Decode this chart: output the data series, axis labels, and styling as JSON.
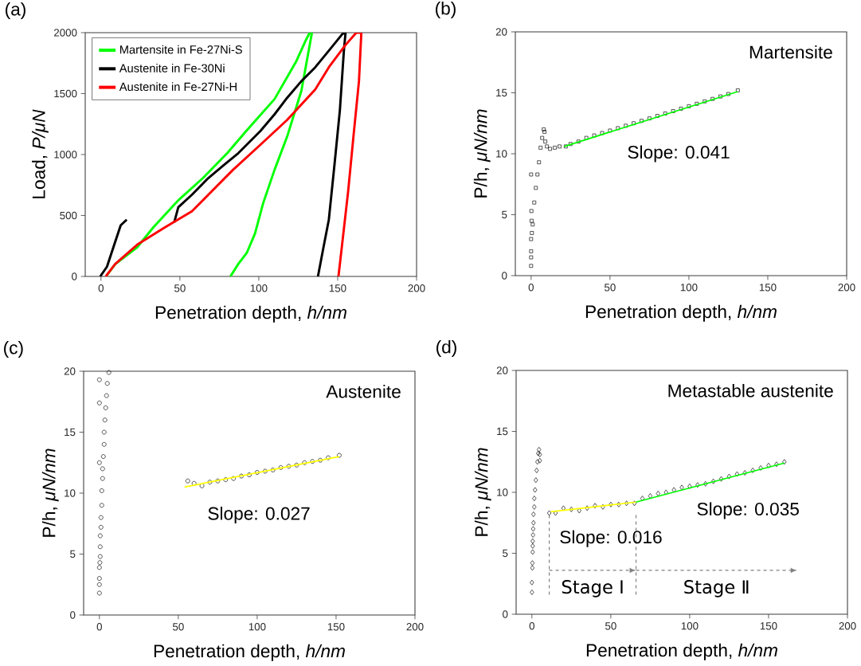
{
  "chart_data": [
    {
      "type": "line",
      "title": "(a)",
      "xlabel": "Penetration depth, *h/nm*",
      "ylabel": "Load, *P/μN*",
      "xlim": [
        -10,
        200
      ],
      "ylim": [
        0,
        2000
      ],
      "xticks": [
        0,
        50,
        100,
        150,
        200
      ],
      "yticks": [
        0,
        500,
        1000,
        1500,
        2000
      ],
      "legend": "top left",
      "series": [
        {
          "name": "Martensite in Fe-27Ni-S",
          "color": "#00ff00",
          "x": [
            3.8,
            9,
            23,
            33,
            49,
            64.6,
            80,
            92,
            110,
            123.6,
            130,
            132.3,
            133.7,
            127,
            118,
            110,
            102.8,
            97.6,
            92.4,
            87,
            82
          ],
          "values": [
            11,
            100,
            240,
            400,
            625,
            807,
            1011,
            1193,
            1455,
            1761,
            1943,
            2000,
            2000,
            1523,
            1148,
            875,
            602,
            352,
            193,
            102,
            0
          ]
        },
        {
          "name": "Austenite in Fe-30Ni",
          "color": "#000000",
          "x": [
            -0.5,
            3.8,
            9,
            12.5,
            16.3,
            null,
            46.4,
            49,
            57.6,
            68,
            78.5,
            87,
            101,
            110,
            118,
            127,
            135.8,
            144.4,
            153,
            155,
            154,
            151.4,
            148,
            144.4,
            141,
            137.5
          ],
          "values": [
            0,
            80,
            284,
            420,
            466,
            null,
            443,
            568,
            670,
            807,
            920,
            1011,
            1193,
            1330,
            1466,
            1602,
            1716,
            1852,
            1989,
            2000,
            1864,
            1364,
            920,
            466,
            239,
            0
          ]
        },
        {
          "name": "Austenite in Fe-27Ni-H",
          "color": "#ff0000",
          "x": [
            3,
            9,
            23,
            40,
            57.6,
            68,
            83.7,
            101,
            118,
            135.8,
            144.4,
            154.9,
            161.8,
            165,
            163.5,
            160,
            156.6,
            153,
            150.5
          ],
          "values": [
            0,
            102,
            261,
            398,
            534,
            670,
            875,
            1080,
            1284,
            1534,
            1716,
            1898,
            2000,
            2000,
            1602,
            1148,
            693,
            284,
            0
          ]
        }
      ]
    },
    {
      "type": "scatter",
      "title": "(b)",
      "xlabel": "Penetration depth, *h/nm*",
      "ylabel": "P/h, *μN/nm*",
      "xlim": [
        -10,
        200
      ],
      "ylim": [
        0,
        20
      ],
      "xticks": [
        0,
        50,
        100,
        150,
        200
      ],
      "yticks": [
        0,
        5,
        10,
        15,
        20
      ],
      "annotations": [
        "Martensite",
        "Slope: 0.041"
      ],
      "series": [
        {
          "color": "#000000",
          "marker": "square",
          "x": [
            0,
            0,
            0,
            0,
            0.5,
            0.3,
            0.2,
            1,
            0,
            2,
            3,
            4,
            5,
            6,
            7,
            8,
            8.5,
            9,
            10,
            12,
            15,
            18,
            22,
            25,
            30,
            35,
            40,
            45,
            50,
            55,
            60,
            65,
            70,
            75,
            80,
            85,
            90,
            95,
            100,
            105,
            110,
            115,
            120,
            125,
            131
          ],
          "values": [
            0.8,
            1.5,
            2.0,
            3.0,
            3.5,
            4.5,
            5.3,
            4.2,
            8.3,
            6,
            7.2,
            8.3,
            9.3,
            10.5,
            11.3,
            12,
            11.8,
            11,
            10.6,
            10.4,
            10.5,
            10.6,
            10.6,
            10.8,
            11,
            11.3,
            11.5,
            11.7,
            11.9,
            12.1,
            12.3,
            12.5,
            12.7,
            12.9,
            13.1,
            13.3,
            13.5,
            13.7,
            13.9,
            14.1,
            14.3,
            14.5,
            14.7,
            14.9,
            15.2
          ]
        },
        {
          "type": "line",
          "color": "#00ff00",
          "x": [
            21,
            131
          ],
          "values": [
            10.6,
            15.1
          ]
        }
      ]
    },
    {
      "type": "scatter",
      "title": "(c)",
      "xlabel": "Penetration depth, *h/nm*",
      "ylabel": "P/h, *μN/nm*",
      "xlim": [
        -10,
        200
      ],
      "ylim": [
        0,
        20
      ],
      "xticks": [
        0,
        50,
        100,
        150,
        200
      ],
      "yticks": [
        0,
        5,
        10,
        15,
        20
      ],
      "annotations": [
        "Austenite",
        "Slope: 0.027"
      ],
      "series": [
        {
          "color": "#000000",
          "marker": "circle",
          "x": [
            0,
            0,
            0,
            0,
            0.3,
            0.5,
            0.5,
            0.5,
            1,
            1,
            1.5,
            1.5,
            2,
            2,
            2.5,
            3,
            3,
            3.5,
            4,
            4.5,
            5,
            6,
            0,
            0,
            0,
            56,
            60,
            65,
            70,
            75,
            80,
            85,
            90,
            95,
            100,
            105,
            110,
            115,
            120,
            125,
            130,
            135,
            140,
            145,
            152
          ],
          "values": [
            1.8,
            2.5,
            3,
            3.9,
            4.3,
            4.8,
            5.6,
            6.5,
            7.2,
            8,
            9,
            10.2,
            11.2,
            12,
            13,
            14,
            15,
            16,
            17,
            18,
            19,
            19.9,
            12.5,
            17.4,
            19.3,
            11,
            10.8,
            10.6,
            10.9,
            11,
            11.1,
            11.2,
            11.4,
            11.5,
            11.7,
            11.8,
            11.9,
            12.1,
            12.2,
            12.3,
            12.5,
            12.6,
            12.7,
            12.9,
            13.1
          ]
        },
        {
          "type": "line",
          "color": "#ffff00",
          "x": [
            54,
            152
          ],
          "values": [
            10.5,
            13.0
          ]
        }
      ]
    },
    {
      "type": "scatter",
      "title": "(d)",
      "xlabel": "Penetration depth, *h/nm*",
      "ylabel": "P/h, *μN/nm*",
      "xlim": [
        -10,
        200
      ],
      "ylim": [
        0,
        20
      ],
      "xticks": [
        0,
        50,
        100,
        150,
        200
      ],
      "yticks": [
        0,
        5,
        10,
        15,
        20
      ],
      "annotations": [
        "Metastable austenite",
        "Slope: 0.016",
        "Slope: 0.035",
        "Stage I",
        "Stage Ⅱ"
      ],
      "ref_lines": [
        {
          "axis": "x",
          "value": 11,
          "color": "#808080",
          "line_style": "dashed"
        },
        {
          "axis": "x",
          "value": 66,
          "color": "#808080",
          "line_style": "dashed"
        }
      ],
      "series": [
        {
          "color": "#000000",
          "marker": "diamond",
          "x": [
            0,
            0,
            0.3,
            0.3,
            0.5,
            0.5,
            0.5,
            0.7,
            0.8,
            1,
            1,
            1.5,
            1.5,
            2,
            2.5,
            3,
            3.5,
            4,
            4.5,
            5,
            5,
            11,
            15,
            20,
            25,
            30,
            35,
            40,
            45,
            50,
            55,
            60,
            65,
            70,
            75,
            80,
            85,
            90,
            95,
            100,
            105,
            110,
            115,
            120,
            125,
            130,
            135,
            140,
            145,
            150,
            155,
            160
          ],
          "values": [
            1.8,
            2.6,
            3.8,
            4.2,
            5.1,
            5.6,
            6,
            6.5,
            7,
            7.5,
            8.2,
            8.8,
            9.5,
            10.2,
            11,
            11.8,
            12.5,
            13.2,
            13.5,
            13.1,
            12.6,
            8.3,
            8.3,
            8.7,
            8.6,
            8.5,
            8.7,
            8.9,
            8.8,
            9,
            9,
            9.1,
            9.1,
            9.5,
            9.7,
            9.9,
            10,
            10.2,
            10.4,
            10.5,
            10.6,
            10.7,
            10.9,
            11.1,
            11.3,
            11.5,
            11.6,
            11.8,
            12,
            12.2,
            12.3,
            12.5
          ]
        },
        {
          "type": "line",
          "color": "#ffff00",
          "x": [
            12,
            66
          ],
          "values": [
            8.4,
            9.2
          ]
        },
        {
          "type": "line",
          "color": "#00ff00",
          "x": [
            66,
            160
          ],
          "values": [
            9.2,
            12.4
          ]
        }
      ]
    }
  ]
}
